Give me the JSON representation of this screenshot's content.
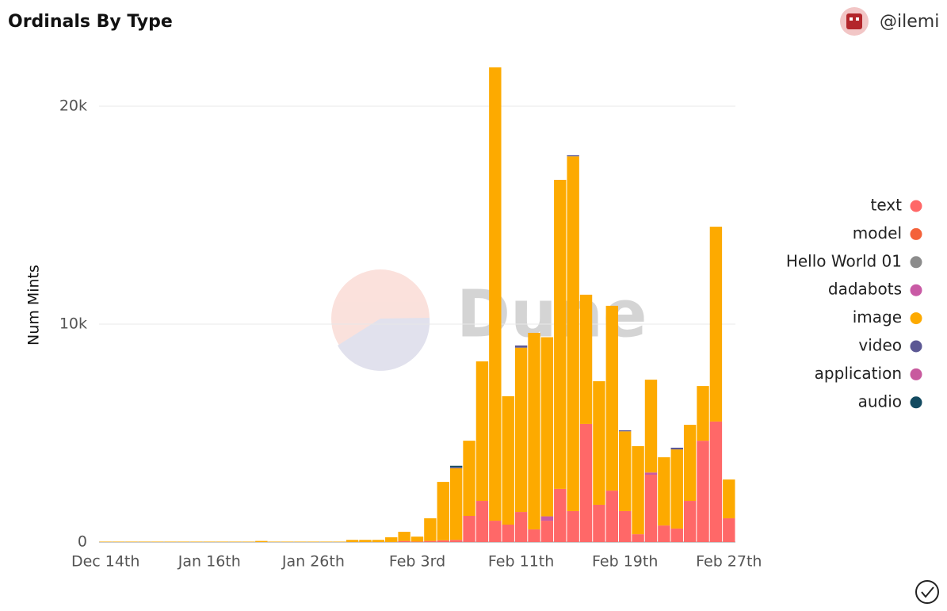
{
  "header": {
    "user": "@ilemi"
  },
  "watermark": "Dune",
  "chart_data": {
    "type": "stacked-bar",
    "title": "Ordinals By Type",
    "y_label": "Num Mints",
    "categories": [
      "Dec 14th",
      null,
      null,
      null,
      null,
      null,
      null,
      null,
      "Jan 16th",
      null,
      null,
      null,
      null,
      null,
      null,
      null,
      "Jan 26th",
      null,
      null,
      null,
      null,
      null,
      null,
      null,
      "Feb 3rd",
      null,
      null,
      null,
      null,
      null,
      null,
      null,
      "Feb 11th",
      null,
      null,
      null,
      null,
      null,
      null,
      null,
      "Feb 19th",
      null,
      null,
      null,
      null,
      null,
      null,
      null,
      "Feb 27th"
    ],
    "series": [
      {
        "name": "text",
        "color": "#ff6868",
        "values": [
          0,
          0,
          0,
          0,
          0,
          0,
          0,
          0,
          0,
          0,
          0,
          0,
          0,
          0,
          0,
          0,
          0,
          0,
          0,
          0,
          0,
          0,
          0,
          50,
          20,
          50,
          80,
          100,
          1200,
          1890,
          980,
          800,
          1380,
          580,
          980,
          2440,
          1420,
          5420,
          1710,
          2360,
          1420,
          360,
          3090,
          760,
          620,
          1890,
          4650,
          5530,
          1090
        ]
      },
      {
        "name": "model",
        "color": "#f4623a",
        "values": [
          0,
          0,
          0,
          0,
          0,
          0,
          0,
          0,
          0,
          0,
          0,
          0,
          0,
          0,
          0,
          0,
          0,
          0,
          0,
          0,
          0,
          0,
          0,
          0,
          0,
          0,
          0,
          0,
          0,
          0,
          0,
          0,
          0,
          0,
          0,
          0,
          0,
          0,
          0,
          0,
          0,
          0,
          0,
          0,
          0,
          0,
          0,
          0,
          0
        ]
      },
      {
        "name": "Hello World 01",
        "color": "#8c8c8c",
        "values": [
          0,
          0,
          0,
          0,
          0,
          0,
          0,
          0,
          0,
          0,
          0,
          0,
          0,
          0,
          0,
          0,
          0,
          0,
          0,
          0,
          0,
          0,
          0,
          0,
          0,
          0,
          0,
          0,
          0,
          0,
          0,
          0,
          0,
          0,
          0,
          0,
          0,
          0,
          0,
          0,
          0,
          0,
          0,
          0,
          0,
          0,
          0,
          0,
          0
        ]
      },
      {
        "name": "dadabots",
        "color": "#c95aa5",
        "values": [
          0,
          0,
          0,
          0,
          0,
          0,
          0,
          0,
          0,
          0,
          0,
          0,
          0,
          0,
          0,
          0,
          0,
          0,
          0,
          0,
          0,
          0,
          0,
          0,
          0,
          0,
          0,
          0,
          0,
          0,
          0,
          0,
          0,
          0,
          200,
          0,
          0,
          0,
          0,
          0,
          0,
          0,
          100,
          0,
          0,
          0,
          0,
          0,
          0
        ]
      },
      {
        "name": "image",
        "color": "#fdaa00",
        "values": [
          20,
          20,
          20,
          20,
          20,
          20,
          20,
          20,
          20,
          20,
          20,
          20,
          50,
          20,
          20,
          20,
          20,
          20,
          20,
          100,
          100,
          100,
          220,
          420,
          230,
          1040,
          2680,
          3290,
          3450,
          6400,
          20800,
          5890,
          7540,
          9020,
          8220,
          14180,
          16280,
          5930,
          5670,
          8480,
          3660,
          4040,
          4260,
          3130,
          3630,
          3490,
          2510,
          8940,
          1780
        ]
      },
      {
        "name": "video",
        "color": "#5c5894",
        "values": [
          0,
          0,
          0,
          0,
          0,
          0,
          0,
          0,
          0,
          0,
          0,
          0,
          0,
          0,
          0,
          0,
          0,
          0,
          0,
          0,
          0,
          0,
          0,
          0,
          0,
          0,
          0,
          50,
          0,
          0,
          0,
          0,
          100,
          0,
          0,
          0,
          50,
          0,
          0,
          0,
          50,
          0,
          0,
          0,
          80,
          0,
          0,
          0,
          0
        ]
      },
      {
        "name": "application",
        "color": "#c85a9e",
        "values": [
          0,
          0,
          0,
          0,
          0,
          0,
          0,
          0,
          0,
          0,
          0,
          0,
          0,
          0,
          0,
          0,
          0,
          0,
          0,
          0,
          0,
          0,
          0,
          0,
          0,
          0,
          0,
          0,
          0,
          0,
          0,
          0,
          0,
          0,
          0,
          0,
          0,
          0,
          0,
          0,
          0,
          0,
          0,
          0,
          0,
          0,
          0,
          0,
          0
        ]
      },
      {
        "name": "audio",
        "color": "#124a60",
        "values": [
          0,
          0,
          0,
          0,
          0,
          0,
          0,
          0,
          0,
          0,
          0,
          0,
          0,
          0,
          0,
          0,
          0,
          0,
          0,
          0,
          0,
          0,
          0,
          0,
          0,
          0,
          0,
          60,
          0,
          0,
          0,
          0,
          0,
          0,
          0,
          0,
          0,
          0,
          0,
          0,
          0,
          0,
          0,
          0,
          0,
          0,
          0,
          0,
          0
        ]
      }
    ],
    "ylim": [
      0,
      22000
    ],
    "yticks": [
      0,
      {
        "value": 10000,
        "label": "10k"
      },
      {
        "value": 20000,
        "label": "20k"
      }
    ],
    "grid": true,
    "legend": "right"
  }
}
